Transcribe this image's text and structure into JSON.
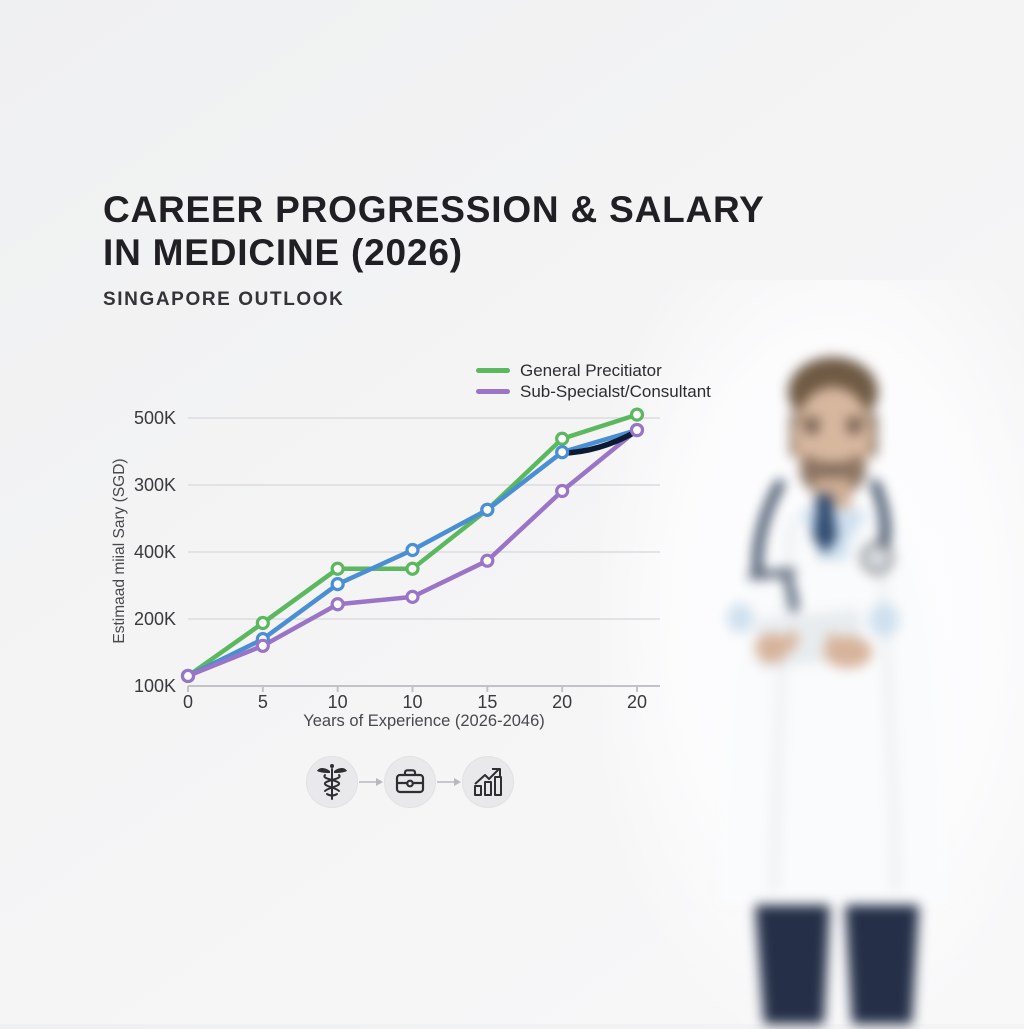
{
  "header": {
    "title_line1": "CAREER PROGRESSION & SALARY",
    "title_line2": "IN MEDICINE (2026)",
    "subtitle": "SINGAPORE OUTLOOK"
  },
  "chart_data": {
    "type": "line",
    "title": "",
    "xlabel": "Years of Experience (2026-2046)",
    "ylabel": "Estimaad miial Sary (SGD)",
    "x_tick_labels": [
      "0",
      "5",
      "10",
      "10",
      "15",
      "20",
      "20"
    ],
    "y_tick_labels_top_to_bottom": [
      "500K",
      "300K",
      "400K",
      "200K",
      "100K"
    ],
    "y_value_range_k": [
      100,
      500
    ],
    "grid": true,
    "legend_position": "top-right",
    "legend": [
      {
        "label": "General Precitiator",
        "color": "#5bb85f"
      },
      {
        "label": "Sub-Specialst/Consultant",
        "color": "#9a74c6"
      }
    ],
    "series": [
      {
        "name": "General Precitiator",
        "color": "#5bb85f",
        "values_k": [
          115,
          194,
          275,
          275,
          363,
          469,
          505
        ]
      },
      {
        "name": "",
        "color": "#4a8fd4",
        "values_k": [
          115,
          170,
          252,
          303,
          363,
          449,
          482
        ]
      },
      {
        "name": "Sub-Specialst/Consultant",
        "color": "#9a74c6",
        "values_k": [
          115,
          160,
          222,
          233,
          287,
          391,
          482
        ]
      }
    ],
    "overlay_segment": {
      "color": "#0c1a33",
      "series_index": 1,
      "from_point": 5,
      "to_point": 6
    },
    "marker_fill": "#fdfdfe",
    "gridline_color": "#dcdcdf",
    "axis_color": "#c3c3c7",
    "tick_text_color": "#3a3a3e"
  },
  "process_icons": [
    {
      "icon": "caduceus-icon"
    },
    {
      "icon": "briefcase-icon"
    },
    {
      "icon": "growth-chart-icon"
    }
  ],
  "photo_figure": {
    "subject": "blurred doctor holding tablet",
    "colors": {
      "coat": "#fafbfc",
      "shirt": "#cfe0ef",
      "tie": "#2e4a6e",
      "trousers": "#253048",
      "skin": "#d8b79f",
      "hair": "#6f5a44",
      "stethoscope": "#2c3e57",
      "tablet": "#e8ecef"
    }
  }
}
